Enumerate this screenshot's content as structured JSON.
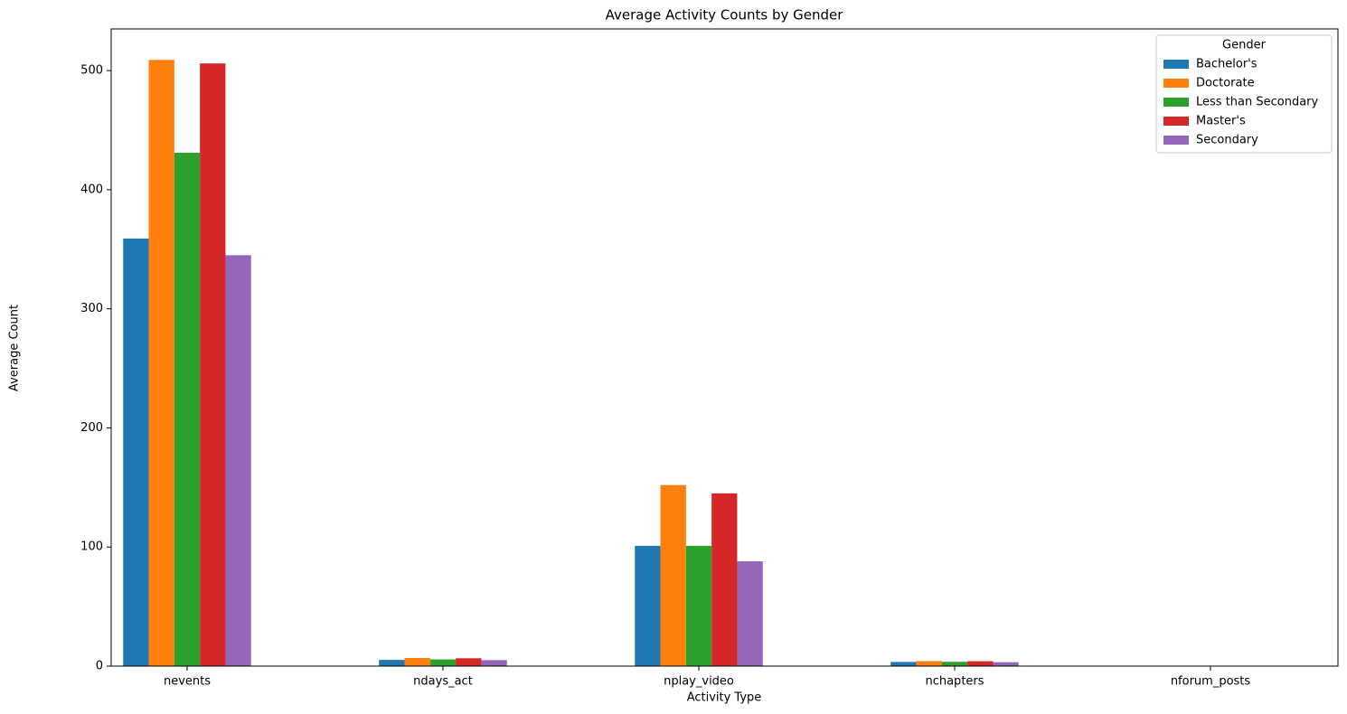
{
  "chart_data": {
    "type": "bar",
    "title": "Average Activity Counts by Gender",
    "x_label": "Activity Type",
    "y_label": "Average Count",
    "legend_title": "Gender",
    "legend_position": "upper right",
    "categories": [
      "nevents",
      "ndays_act",
      "nplay_video",
      "nchapters",
      "nforum_posts"
    ],
    "series": [
      {
        "name": "Bachelor's",
        "color": "#1f77b4",
        "values": [
          359,
          5.2,
          101,
          3.5,
          0.02
        ]
      },
      {
        "name": "Doctorate",
        "color": "#ff7f0e",
        "values": [
          509,
          6.8,
          152,
          4.2,
          0.03
        ]
      },
      {
        "name": "Less than Secondary",
        "color": "#2ca02c",
        "values": [
          431,
          5.6,
          101,
          3.6,
          0.02
        ]
      },
      {
        "name": "Master's",
        "color": "#d62728",
        "values": [
          506,
          6.6,
          145,
          4.1,
          0.03
        ]
      },
      {
        "name": "Secondary",
        "color": "#9467bd",
        "values": [
          345,
          5.0,
          88,
          3.3,
          0.02
        ]
      }
    ],
    "ylim": [
      0,
      535
    ],
    "yticks": [
      0,
      100,
      200,
      300,
      400,
      500
    ]
  }
}
